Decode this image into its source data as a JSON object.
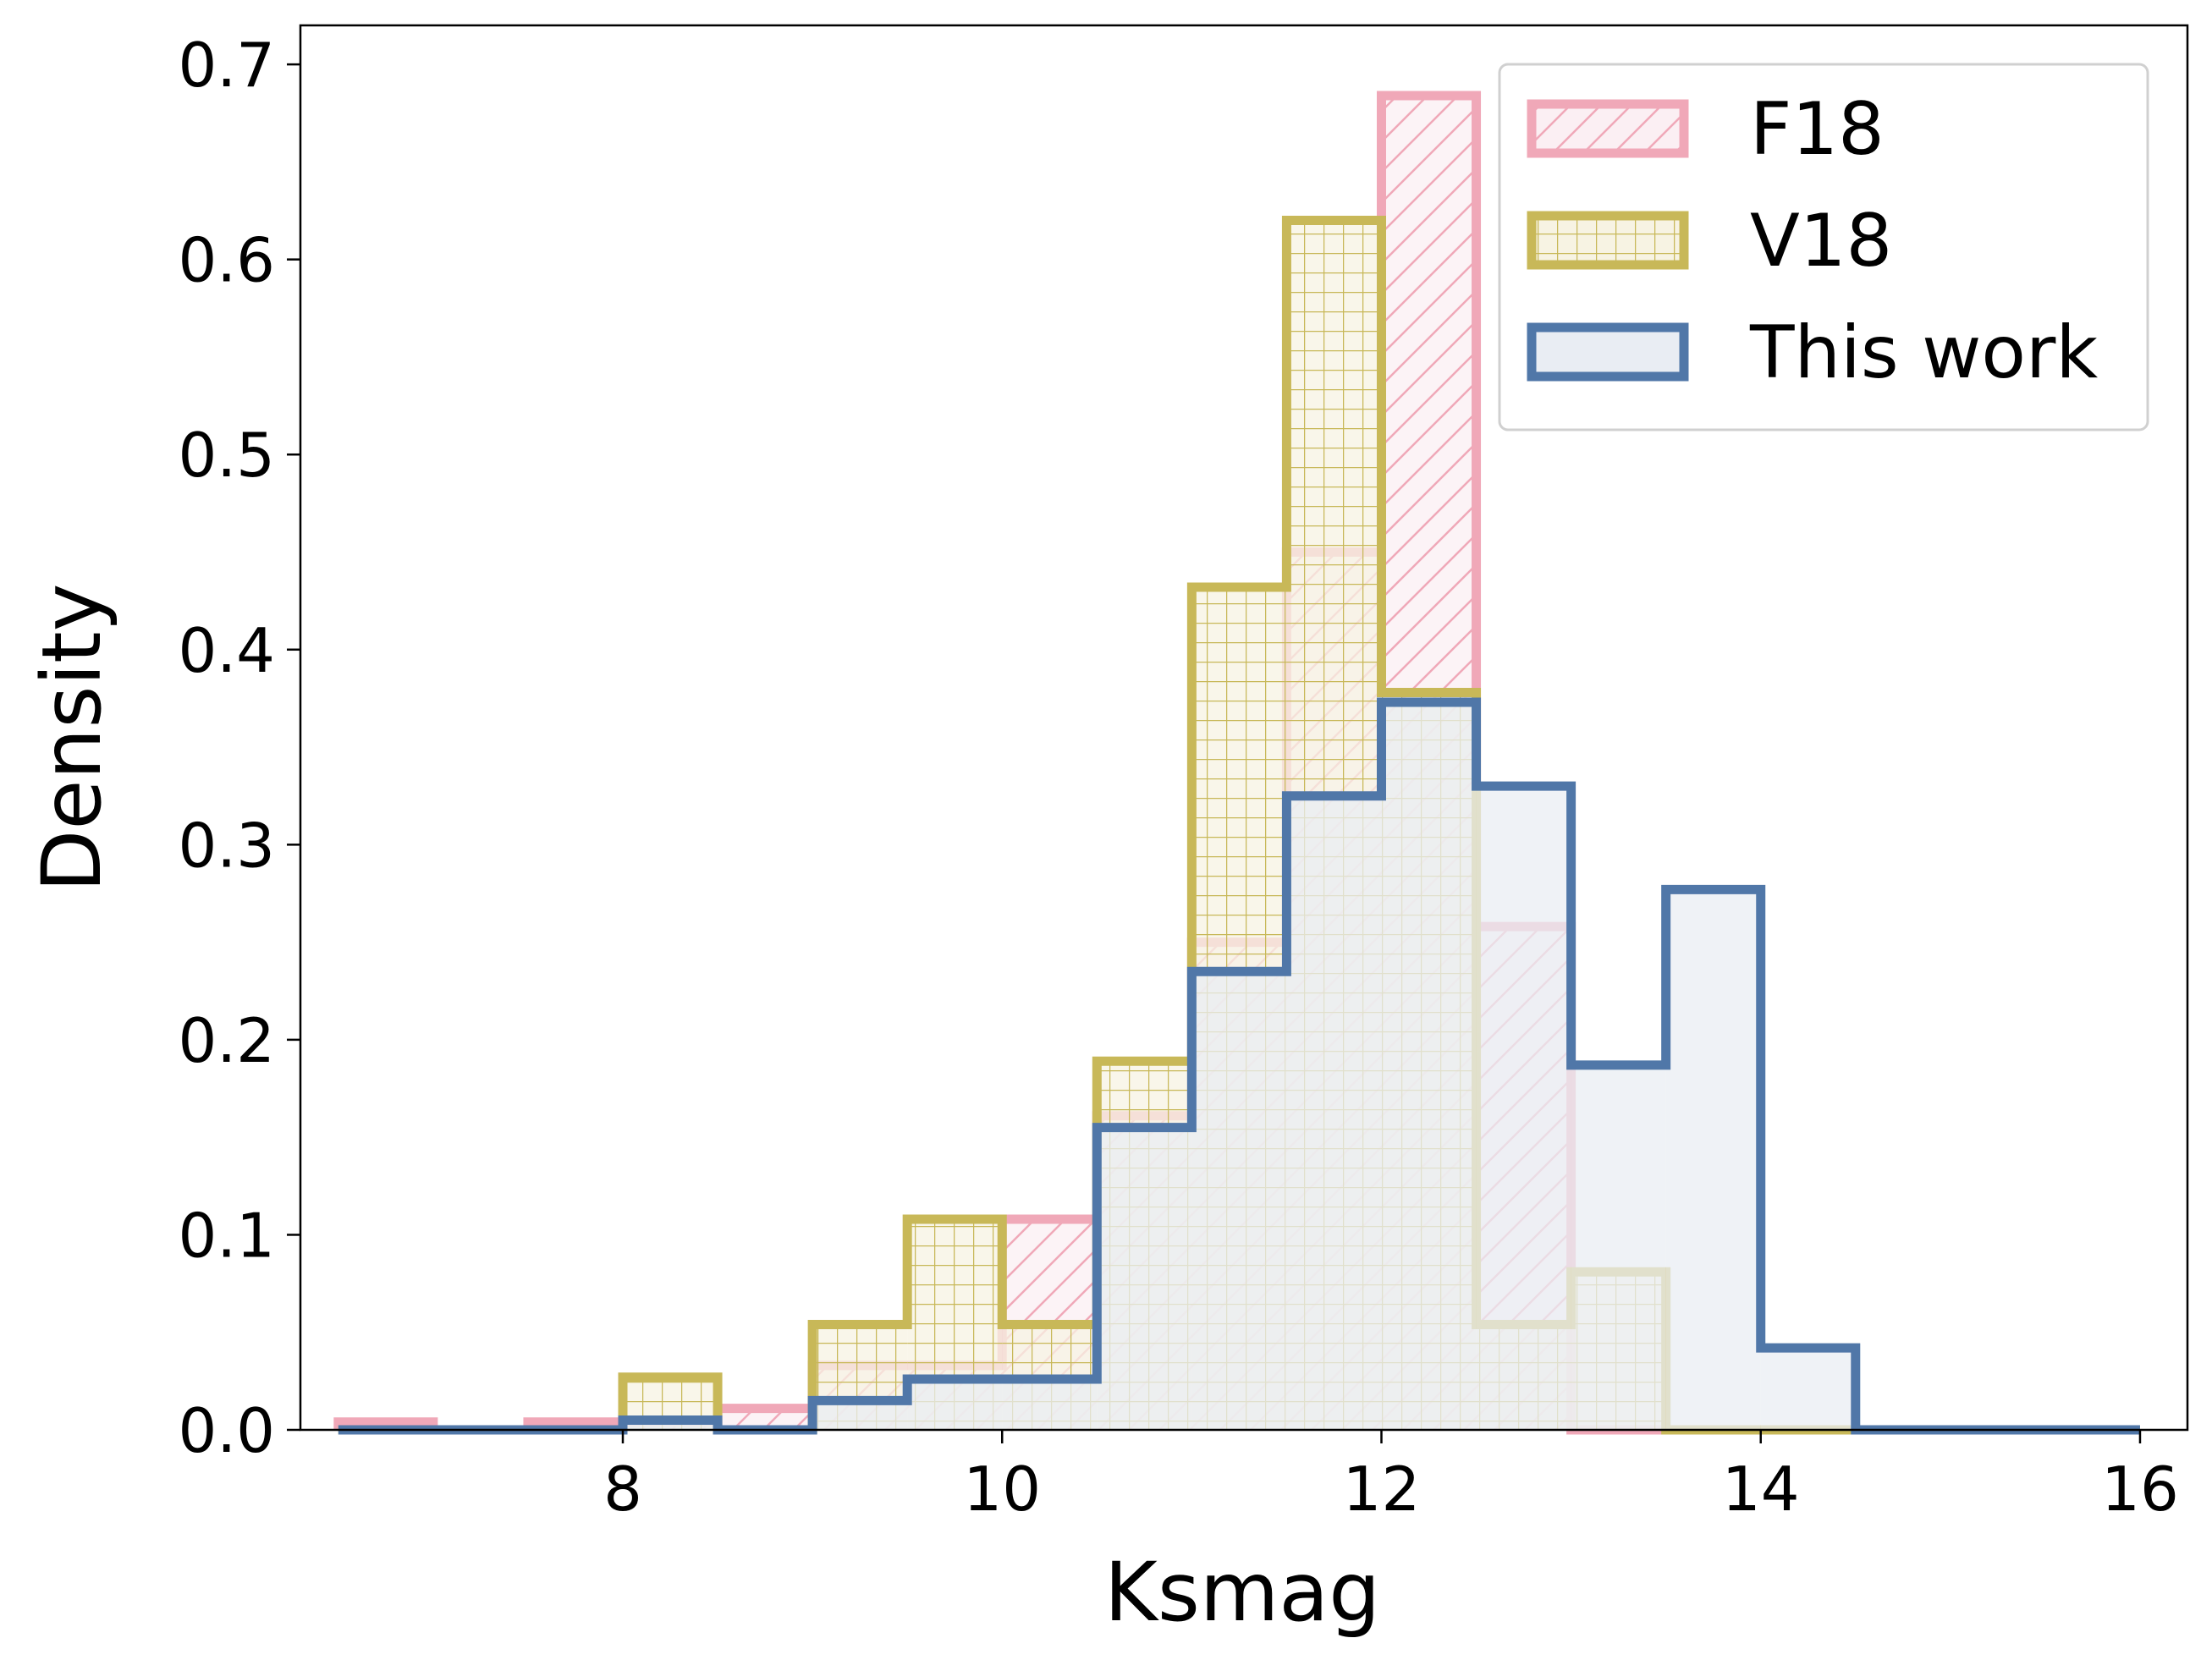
{
  "chart_data": {
    "type": "histogram",
    "title": "",
    "xlabel": "Ksmag",
    "ylabel": "Density",
    "xlim": [
      6.3,
      16.25
    ],
    "ylim": [
      0.0,
      0.72
    ],
    "xticks": [
      8,
      10,
      12,
      14,
      16
    ],
    "xtick_labels": [
      "8",
      "10",
      "12",
      "14",
      "16"
    ],
    "yticks": [
      0.0,
      0.1,
      0.2,
      0.3,
      0.4,
      0.5,
      0.6,
      0.7
    ],
    "ytick_labels": [
      "0.0",
      "0.1",
      "0.2",
      "0.3",
      "0.4",
      "0.5",
      "0.6",
      "0.7"
    ],
    "bin_edges": [
      6.5,
      7.0,
      7.5,
      8.0,
      8.5,
      9.0,
      9.5,
      10.0,
      10.5,
      11.0,
      11.5,
      12.0,
      12.5,
      13.0,
      13.5,
      14.0,
      14.5,
      15.0,
      15.5,
      16.0
    ],
    "legend_position": "top-right",
    "grid": false,
    "series": [
      {
        "name": "F18",
        "edge_color": "#F0A8B8",
        "fill_color": "#FBEFF3",
        "hatch": "diagonal",
        "values": [
          0.004,
          0.0,
          0.004,
          0.004,
          0.011,
          0.033,
          0.033,
          0.108,
          0.161,
          0.25,
          0.45,
          0.684,
          0.258,
          0.0,
          0.0,
          0.0,
          0.0,
          0.0,
          0.0
        ]
      },
      {
        "name": "V18",
        "edge_color": "#C8B858",
        "fill_color": "#F7F3E3",
        "hatch": "grid",
        "values": [
          0.0,
          0.0,
          0.0,
          0.027,
          0.0,
          0.054,
          0.108,
          0.054,
          0.189,
          0.432,
          0.62,
          0.378,
          0.054,
          0.081,
          0.0,
          0.0,
          0.0,
          0.0,
          0.0
        ]
      },
      {
        "name": "This work",
        "edge_color": "#5077A8",
        "fill_color": "#E9EDF3",
        "hatch": "none",
        "values": [
          0.0,
          0.0,
          0.0,
          0.005,
          0.0,
          0.015,
          0.026,
          0.026,
          0.155,
          0.235,
          0.325,
          0.373,
          0.33,
          0.187,
          0.277,
          0.042,
          0.0,
          0.0,
          0.0
        ]
      }
    ]
  }
}
